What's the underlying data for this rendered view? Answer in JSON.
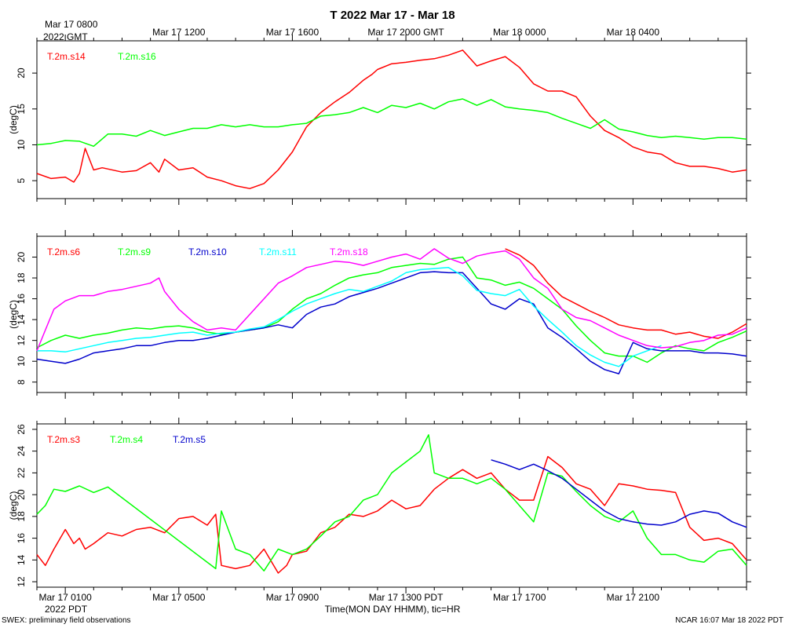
{
  "title": "T 2022 Mar 17 - Mar 18",
  "top_axis": {
    "first_label": "Mar 17 0800",
    "first_sub": "2022 GMT",
    "labels": [
      "Mar 17 1200",
      "Mar 17 1600",
      "Mar 17 2000 GMT",
      "Mar 18 0000",
      "Mar 18 0400"
    ]
  },
  "bottom_axis": {
    "labels": [
      "Mar 17 0100",
      "Mar 17 0500",
      "Mar 17 0900",
      "Mar 17 1300 PDT",
      "Mar 17 1700",
      "Mar 17 2100"
    ],
    "sub_label": "2022 PDT",
    "xlabel": "Time(MON DAY HHMM), tic=HR"
  },
  "footer": {
    "left": "SWEX: preliminary field observations",
    "right": "NCAR 16:07 Mar 18 2022 PDT"
  },
  "chart_data": [
    {
      "type": "line",
      "ylabel": "(degC)",
      "ylim": [
        2.5,
        24.5
      ],
      "yticks": [
        5,
        10,
        15,
        20
      ],
      "x_unit": "hours since Mar 17 0000 PDT",
      "xlim": [
        0,
        25
      ],
      "series": [
        {
          "name": "T.2m.s14",
          "color": "#ff0000",
          "x": [
            0,
            0.5,
            1,
            1.3,
            1.5,
            1.7,
            2,
            2.3,
            3,
            3.5,
            4,
            4.3,
            4.5,
            5,
            5.5,
            6,
            6.5,
            7,
            7.5,
            8,
            8.5,
            9,
            9.5,
            10,
            10.5,
            11,
            11.5,
            11.8,
            12,
            12.5,
            13,
            13.5,
            14,
            14.5,
            15,
            15.5,
            16,
            16.5,
            17,
            17.5,
            18,
            18.5,
            19,
            19.5,
            20,
            20.5,
            21,
            21.5,
            22,
            22.5,
            23,
            23.5,
            24,
            24.5,
            25
          ],
          "values": [
            6,
            5.3,
            5.5,
            4.8,
            6,
            9.5,
            6.5,
            6.8,
            6.2,
            6.4,
            7.5,
            6.2,
            8,
            6.5,
            6.8,
            5.5,
            5,
            4.3,
            3.9,
            4.6,
            6.5,
            9,
            12.5,
            14.5,
            16,
            17.3,
            19,
            19.8,
            20.5,
            21.3,
            21.5,
            21.8,
            22,
            22.5,
            23.2,
            21,
            21.7,
            22.3,
            20.8,
            18.5,
            17.5,
            17.5,
            16.7,
            14,
            12,
            11,
            9.7,
            9,
            8.7,
            7.5,
            7,
            7,
            6.7,
            6.2,
            6.5
          ]
        },
        {
          "name": "T.2m.s16",
          "color": "#00ff00",
          "x": [
            0,
            0.5,
            1,
            1.5,
            2,
            2.5,
            3,
            3.5,
            4,
            4.5,
            5,
            5.5,
            6,
            6.5,
            7,
            7.5,
            8,
            8.5,
            9,
            9.5,
            10,
            10.5,
            11,
            11.5,
            12,
            12.5,
            13,
            13.5,
            14,
            14.5,
            15,
            15.5,
            16,
            16.5,
            17,
            17.5,
            18,
            18.5,
            19,
            19.5,
            20,
            20.5,
            21,
            21.5,
            22,
            22.5,
            23,
            23.5,
            24,
            24.5,
            25
          ],
          "values": [
            10,
            10.2,
            10.6,
            10.5,
            9.8,
            11.5,
            11.5,
            11.2,
            12,
            11.3,
            11.8,
            12.3,
            12.3,
            12.8,
            12.5,
            12.8,
            12.5,
            12.5,
            12.8,
            13,
            14,
            14.2,
            14.5,
            15.2,
            14.5,
            15.5,
            15.2,
            15.8,
            15,
            16,
            16.4,
            15.5,
            16.3,
            15.3,
            15,
            14.8,
            14.5,
            13.7,
            13,
            12.3,
            13.5,
            12.2,
            11.8,
            11.3,
            11,
            11.2,
            11,
            10.8,
            11,
            11,
            10.8
          ]
        }
      ]
    },
    {
      "type": "line",
      "ylabel": "(degC)",
      "ylim": [
        7,
        22
      ],
      "yticks": [
        8,
        10,
        12,
        14,
        16,
        18,
        20
      ],
      "x_unit": "hours since Mar 17 0000 PDT",
      "xlim": [
        0,
        25
      ],
      "series": [
        {
          "name": "T.2m.s6",
          "color": "#ff0000",
          "x": [
            16.5,
            17,
            17.5,
            18,
            18.5,
            19,
            19.5,
            20,
            20.5,
            21,
            21.5,
            22,
            22.5,
            23,
            23.5,
            24,
            24.5,
            25
          ],
          "values": [
            20.8,
            20.2,
            19.2,
            17.5,
            16.2,
            15.5,
            14.8,
            14.2,
            13.5,
            13.2,
            13,
            13,
            12.6,
            12.8,
            12.4,
            12.2,
            12.8,
            13.6
          ]
        },
        {
          "name": "T.2m.s9",
          "color": "#00ff00",
          "x": [
            0,
            0.5,
            1,
            1.5,
            2,
            2.5,
            3,
            3.5,
            4,
            4.5,
            5,
            5.5,
            6,
            6.5,
            7,
            7.5,
            8,
            8.5,
            9,
            9.5,
            10,
            10.5,
            11,
            11.5,
            12,
            12.5,
            13,
            13.5,
            14,
            14.5,
            15,
            15.5,
            16,
            16.5,
            17,
            17.5,
            18,
            18.5,
            19,
            19.5,
            20,
            20.5,
            21,
            21.5,
            22,
            22.5,
            23,
            23.5,
            24,
            24.5,
            25
          ],
          "values": [
            11.3,
            12,
            12.5,
            12.2,
            12.5,
            12.7,
            13,
            13.2,
            13.1,
            13.3,
            13.4,
            13.2,
            12.8,
            12.6,
            12.8,
            13,
            13.2,
            13.8,
            15,
            16,
            16.5,
            17.3,
            18,
            18.3,
            18.5,
            19,
            19.2,
            19.4,
            19.3,
            19.8,
            20,
            18,
            17.8,
            17.3,
            17.6,
            17,
            16,
            15,
            13.4,
            12,
            10.8,
            10.5,
            10.5,
            9.9,
            10.8,
            11.5,
            11.2,
            11,
            11.8,
            12.3,
            12.9
          ]
        },
        {
          "name": "T.2m.s10",
          "color": "#0000cc",
          "x": [
            0,
            0.5,
            1,
            1.5,
            2,
            2.5,
            3,
            3.5,
            4,
            4.5,
            5,
            5.5,
            6,
            6.5,
            7,
            7.5,
            8,
            8.5,
            9,
            9.5,
            10,
            10.5,
            11,
            11.5,
            12,
            12.5,
            13,
            13.5,
            14,
            14.5,
            15,
            15.5,
            16,
            16.5,
            17,
            17.5,
            18,
            18.5,
            19,
            19.5,
            20,
            20.5,
            21,
            21.5,
            22,
            22.5,
            23,
            23.5,
            24,
            24.5,
            25
          ],
          "values": [
            10.2,
            10,
            9.8,
            10.2,
            10.8,
            11,
            11.2,
            11.5,
            11.5,
            11.8,
            12,
            12,
            12.2,
            12.5,
            12.8,
            13,
            13.2,
            13.5,
            13.2,
            14.5,
            15.2,
            15.5,
            16.2,
            16.6,
            17,
            17.5,
            18,
            18.5,
            18.6,
            18.5,
            18.5,
            17,
            15.5,
            15,
            16,
            15.5,
            13.2,
            12.3,
            11.2,
            10,
            9.2,
            8.8,
            11.8,
            11.2,
            11,
            11,
            11,
            10.8,
            10.8,
            10.7,
            10.5
          ]
        },
        {
          "name": "T.2m.s11",
          "color": "#00ffff",
          "x": [
            0,
            0.5,
            1,
            1.5,
            2,
            2.5,
            3,
            3.5,
            4,
            4.5,
            5,
            5.5,
            6,
            6.5,
            7,
            7.5,
            8,
            8.5,
            9,
            9.5,
            10,
            10.5,
            11,
            11.5,
            12,
            12.5,
            13,
            13.5,
            14,
            14.5,
            15,
            15.5,
            16,
            16.5,
            17,
            17.5,
            18,
            18.5,
            19,
            19.5,
            20,
            20.5,
            21,
            21.5,
            22
          ],
          "values": [
            11,
            11,
            10.9,
            11.2,
            11.5,
            11.8,
            12,
            12.2,
            12.3,
            12.5,
            12.7,
            12.8,
            12.5,
            12.7,
            12.8,
            13.1,
            13.3,
            14,
            14.8,
            15.5,
            16,
            16.5,
            16.9,
            16.7,
            17.2,
            17.7,
            18.5,
            18.8,
            18.9,
            19,
            18.2,
            16.8,
            16.5,
            16.3,
            16.9,
            15.3,
            14,
            12.8,
            11.5,
            10.6,
            9.9,
            9.5,
            10.5,
            11,
            11.5
          ]
        },
        {
          "name": "T.2m.s18",
          "color": "#ff00ff",
          "x": [
            0,
            0.3,
            0.6,
            1,
            1.5,
            2,
            2.5,
            3,
            3.5,
            4,
            4.3,
            4.5,
            5,
            5.5,
            6,
            6.5,
            7,
            7.5,
            8,
            8.5,
            9,
            9.5,
            10,
            10.5,
            11,
            11.5,
            12,
            12.5,
            13,
            13.5,
            14,
            14.5,
            15,
            15.5,
            16,
            16.5,
            17,
            17.5,
            18,
            18.5,
            19,
            19.5,
            20,
            20.5,
            21,
            21.5,
            22,
            22.5,
            23,
            23.5,
            24,
            24.5,
            25
          ],
          "values": [
            11,
            13,
            15,
            15.8,
            16.3,
            16.3,
            16.7,
            16.9,
            17.2,
            17.5,
            18,
            16.7,
            15,
            13.8,
            13,
            13.2,
            13,
            14.5,
            16,
            17.5,
            18.2,
            19,
            19.3,
            19.6,
            19.5,
            19.2,
            19.6,
            20,
            20.3,
            19.8,
            20.8,
            19.9,
            19.4,
            20.1,
            20.4,
            20.6,
            19.8,
            18,
            17,
            15,
            14.2,
            13.9,
            13.2,
            12.5,
            12,
            11.5,
            11.3,
            11.4,
            11.8,
            12,
            12.5,
            12.6,
            13.2
          ]
        }
      ]
    },
    {
      "type": "line",
      "ylabel": "(degC)",
      "ylim": [
        11.5,
        26.5
      ],
      "yticks": [
        12,
        14,
        16,
        18,
        20,
        22,
        24,
        26
      ],
      "x_unit": "hours since Mar 17 0000 PDT",
      "xlim": [
        0,
        25
      ],
      "series": [
        {
          "name": "T.2m.s3",
          "color": "#ff0000",
          "x": [
            0,
            0.3,
            0.6,
            1,
            1.3,
            1.5,
            1.7,
            2,
            2.5,
            3,
            3.5,
            4,
            4.5,
            5,
            5.5,
            6,
            6.3,
            6.5,
            7,
            7.5,
            8,
            8.5,
            8.8,
            9,
            9.5,
            10,
            10.5,
            11,
            11.5,
            12,
            12.5,
            13,
            13.5,
            14,
            14.5,
            15,
            15.5,
            16,
            16.5,
            17,
            17.5,
            18,
            18.5,
            19,
            19.5,
            20,
            20.5,
            21,
            21.5,
            22,
            22.5,
            23,
            23.5,
            24,
            24.5,
            25
          ],
          "values": [
            14.5,
            13.5,
            15,
            16.8,
            15.5,
            16,
            15,
            15.5,
            16.5,
            16.2,
            16.8,
            17,
            16.5,
            17.8,
            18,
            17.2,
            18.2,
            13.5,
            13.2,
            13.5,
            15,
            12.8,
            13.5,
            14.5,
            14.8,
            16.5,
            17,
            18.2,
            18,
            18.5,
            19.5,
            18.7,
            19,
            20.5,
            21.5,
            22.3,
            21.5,
            22,
            20.5,
            19.5,
            19.5,
            23.5,
            22.5,
            21,
            20.5,
            19,
            21,
            20.8,
            20.5,
            20.4,
            20.2,
            17,
            15.8,
            16,
            15.5,
            14
          ]
        },
        {
          "name": "T.2m.s4",
          "color": "#00ff00",
          "x": [
            0,
            0.3,
            0.6,
            1,
            1.5,
            2,
            2.5,
            6.3,
            6.5,
            7,
            7.5,
            8,
            8.5,
            9,
            9.5,
            10,
            10.5,
            11,
            11.5,
            12,
            12.5,
            13,
            13.5,
            13.8,
            14,
            14.5,
            15,
            15.5,
            16,
            16.5,
            17,
            17.5,
            18,
            18.5,
            19,
            19.5,
            20,
            20.5,
            21,
            21.5,
            22,
            22.5,
            23,
            23.5,
            24,
            24.5,
            25
          ],
          "values": [
            18.2,
            19,
            20.5,
            20.3,
            20.8,
            20.2,
            20.7,
            13.2,
            18.5,
            15,
            14.5,
            13,
            15,
            14.5,
            15,
            16.2,
            17.5,
            18,
            19.5,
            20,
            22,
            23,
            24,
            25.5,
            22,
            21.5,
            21.5,
            21,
            21.5,
            20.5,
            19,
            17.5,
            22,
            21.7,
            20.3,
            19,
            18,
            17.5,
            18.5,
            16,
            14.5,
            14.5,
            14,
            13.8,
            14.8,
            15,
            13.5
          ]
        },
        {
          "name": "T.2m.s5",
          "color": "#0000cc",
          "x": [
            16,
            16.5,
            17,
            17.5,
            18,
            18.5,
            19,
            19.5,
            20,
            20.5,
            21,
            21.5,
            22,
            22.5,
            23,
            23.5,
            24,
            24.5,
            25
          ],
          "values": [
            23.2,
            22.8,
            22.3,
            22.8,
            22.2,
            21.5,
            20.5,
            19.5,
            18.5,
            17.8,
            17.5,
            17.3,
            17.2,
            17.5,
            18.2,
            18.5,
            18.3,
            17.5,
            17
          ]
        }
      ]
    }
  ]
}
